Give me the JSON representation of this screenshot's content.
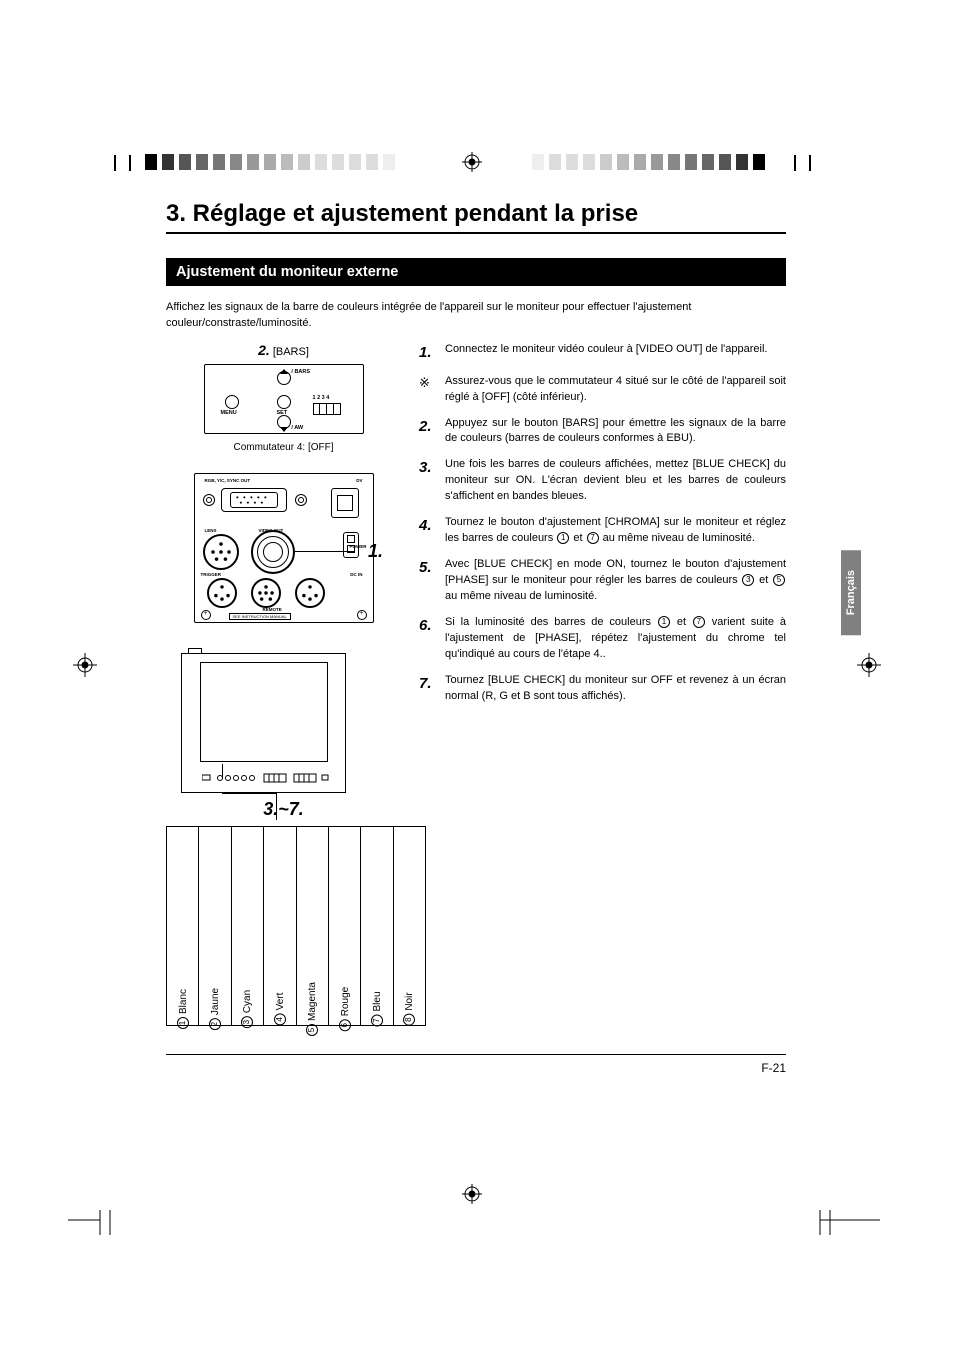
{
  "page": {
    "title": "3. Réglage et ajustement pendant la prise",
    "subheading": "Ajustement du moniteur externe",
    "intro": "Affichez les signaux de la barre de couleurs intégrée de l'appareil sur le moniteur pour effectuer l'ajustement couleur/constraste/luminosité.",
    "footer": "F-21",
    "lang_tab": "Français"
  },
  "left": {
    "bars_step_num": "2.",
    "bars_step_label": "[BARS]",
    "top_ctrl": {
      "bars": "/ BARS",
      "menu": "MENU",
      "set": "SET",
      "aw": "/ AW",
      "dip": "1 2 3 4"
    },
    "commutateur": "Commutateur 4: [OFF]",
    "rear": {
      "rgb": "RGB, Y/C, SYNC OUT",
      "dv": "DV",
      "lens": "LENS",
      "video_out": "VIDEO OUT",
      "power": "POWER",
      "trigger": "TRIGGER",
      "dc_in": "DC IN",
      "remote": "REMOTE",
      "manual": "SEE INSTRUCTION MANUAL"
    },
    "callout_1": "1.",
    "step_range": "3.~7."
  },
  "colors": [
    {
      "num": "1",
      "name": "Blanc"
    },
    {
      "num": "2",
      "name": "Jaune"
    },
    {
      "num": "3",
      "name": "Cyan"
    },
    {
      "num": "4",
      "name": "Vert"
    },
    {
      "num": "5",
      "name": "Magenta"
    },
    {
      "num": "6",
      "name": "Rouge"
    },
    {
      "num": "7",
      "name": "Bleu"
    },
    {
      "num": "8",
      "name": "Noir"
    }
  ],
  "steps": [
    {
      "num": "1.",
      "text": "Connectez le moniteur vidéo couleur à [VIDEO OUT] de l'appareil."
    },
    {
      "num": "※",
      "text": "Assurez-vous que le commutateur 4 situé sur le côté de l'appareil soit réglé à [OFF] (côté inférieur)."
    },
    {
      "num": "2.",
      "text": "Appuyez sur le bouton [BARS] pour émettre les signaux de la barre de couleurs (barres de couleurs conformes à EBU)."
    },
    {
      "num": "3.",
      "text": "Une fois les barres de couleurs affichées, mettez [BLUE CHECK] du moniteur sur ON. L'écran devient bleu et les barres de couleurs s'affichent en bandes bleues."
    },
    {
      "num": "4.",
      "text": "Tournez le bouton d'ajustement [CHROMA] sur le moniteur et réglez les barres de couleurs ① et ⑦ au même niveau de luminosité."
    },
    {
      "num": "5.",
      "text": "Avec [BLUE CHECK] en mode ON, tournez le bouton d'ajustement [PHASE] sur le moniteur pour régler les barres de couleurs ③ et ⑤ au même niveau de luminosité."
    },
    {
      "num": "6.",
      "text": "Si la luminosité des barres de couleurs ① et ⑦ varient suite à l'ajustement de [PHASE], répétez l'ajustement du chrome tel qu'indiqué au cours de l'étape 4.."
    },
    {
      "num": "7.",
      "text": "Tournez [BLUE CHECK] du moniteur sur OFF et revenez à un écran normal (R, G et B sont tous affichés)."
    }
  ]
}
